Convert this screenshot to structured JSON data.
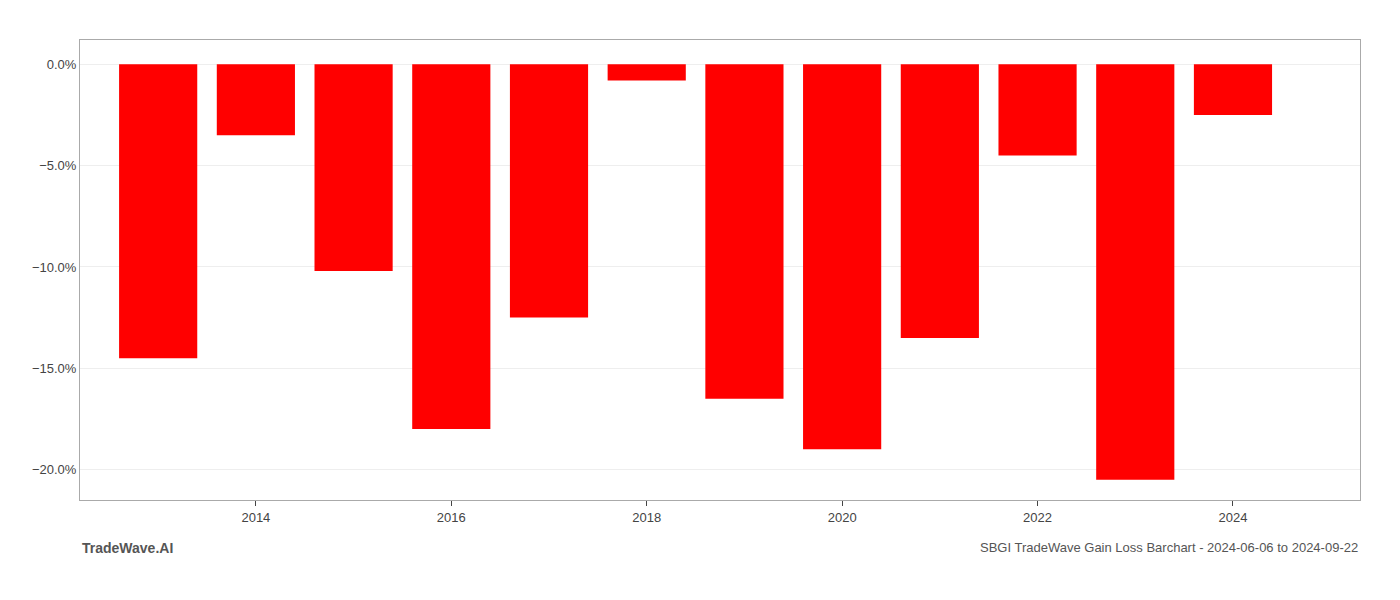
{
  "chart_data": {
    "type": "bar",
    "title": "SBGI TradeWave Gain Loss Barchart - 2024-06-06 to 2024-09-22",
    "annotations": [
      "TradeWave.AI"
    ],
    "x": [
      2013,
      2014,
      2015,
      2016,
      2017,
      2018,
      2019,
      2020,
      2021,
      2022,
      2023,
      2024
    ],
    "values": [
      -14.5,
      -3.5,
      -10.2,
      -18.0,
      -12.5,
      -0.8,
      -16.5,
      -19.0,
      -13.5,
      -4.5,
      -20.5,
      -2.5
    ],
    "color": "#ff0000",
    "xlim": [
      2012.2,
      2025.3
    ],
    "xticks": [
      2014,
      2016,
      2018,
      2020,
      2022,
      2024
    ],
    "ylim": [
      -21.5,
      1.2
    ],
    "yticks": [
      {
        "value": 0.0,
        "label": "0.0%"
      },
      {
        "value": -5.0,
        "label": "−5.0%"
      },
      {
        "value": -10.0,
        "label": "−10.0%"
      },
      {
        "value": -15.0,
        "label": "−15.0%"
      },
      {
        "value": -20.0,
        "label": "−20.0%"
      }
    ],
    "grid": true
  }
}
